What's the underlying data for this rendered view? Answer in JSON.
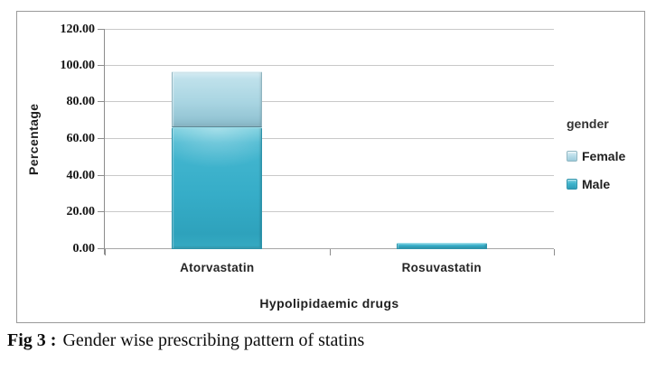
{
  "caption": {
    "prefix": "Fig 3 :",
    "text": "Gender wise prescribing pattern of statins"
  },
  "colors": {
    "frame_border": "#9a9a9a",
    "gridline": "#c9c9c9",
    "axis": "#8c8c8c",
    "male": "#35aec7",
    "female": "#a9d4e2"
  },
  "chart_data": {
    "type": "bar",
    "stacked": true,
    "title": "",
    "xlabel": "Hypolipidaemic drugs",
    "ylabel": "Percentage",
    "categories": [
      "Atorvastatin",
      "Rosuvastatin"
    ],
    "series": [
      {
        "name": "Male",
        "color": "#35aec7",
        "values": [
          66.5,
          3.3
        ]
      },
      {
        "name": "Female",
        "color": "#a9d4e2",
        "values": [
          30.2,
          0
        ]
      }
    ],
    "ylim": [
      0,
      120
    ],
    "yticks": [
      0,
      20,
      40,
      60,
      80,
      100,
      120
    ],
    "ytick_labels": [
      "0.00",
      "20.00",
      "40.00",
      "60.00",
      "80.00",
      "100.00",
      "120.00"
    ],
    "grid": true,
    "legend": {
      "title": "gender",
      "position": "right",
      "entries": [
        "Female",
        "Male"
      ]
    }
  }
}
